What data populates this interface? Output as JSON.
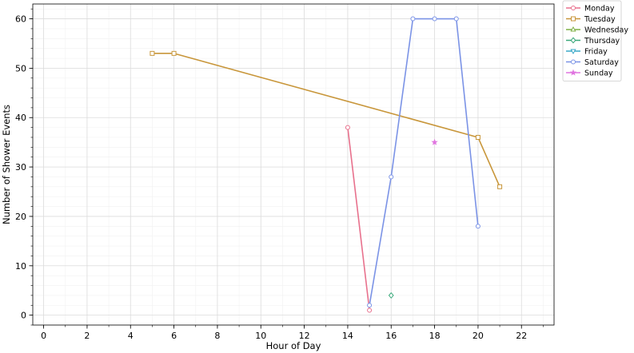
{
  "chart_data": {
    "type": "line",
    "xlabel": "Hour of Day",
    "ylabel": "Number of Shower Events",
    "xlim": [
      -0.5,
      23.5
    ],
    "ylim": [
      -2,
      63
    ],
    "x_ticks": [
      0,
      2,
      4,
      6,
      8,
      10,
      12,
      14,
      16,
      18,
      20,
      22
    ],
    "y_ticks": [
      0,
      10,
      20,
      30,
      40,
      50,
      60
    ],
    "grid": true,
    "minor_grid": true,
    "legend_position": "outside-top-right",
    "series": [
      {
        "name": "Monday",
        "color": "#e8718d",
        "marker": "circle",
        "points": [
          [
            14,
            38
          ],
          [
            15,
            1
          ]
        ]
      },
      {
        "name": "Tuesday",
        "color": "#c8963a",
        "marker": "square",
        "points": [
          [
            5,
            53
          ],
          [
            6,
            53
          ],
          [
            20,
            36
          ],
          [
            21,
            26
          ]
        ]
      },
      {
        "name": "Wednesday",
        "color": "#7fb046",
        "marker": "triangle-up",
        "points": []
      },
      {
        "name": "Thursday",
        "color": "#3aa87a",
        "marker": "diamond",
        "points": [
          [
            16,
            4
          ]
        ]
      },
      {
        "name": "Friday",
        "color": "#3aa9c8",
        "marker": "triangle-down",
        "points": []
      },
      {
        "name": "Saturday",
        "color": "#7b93e6",
        "marker": "circle",
        "points": [
          [
            15,
            2
          ],
          [
            16,
            28
          ],
          [
            17,
            60
          ],
          [
            18,
            60
          ],
          [
            19,
            60
          ],
          [
            20,
            18
          ]
        ]
      },
      {
        "name": "Sunday",
        "color": "#e075e0",
        "marker": "star",
        "points": [
          [
            18,
            35
          ]
        ]
      }
    ]
  }
}
